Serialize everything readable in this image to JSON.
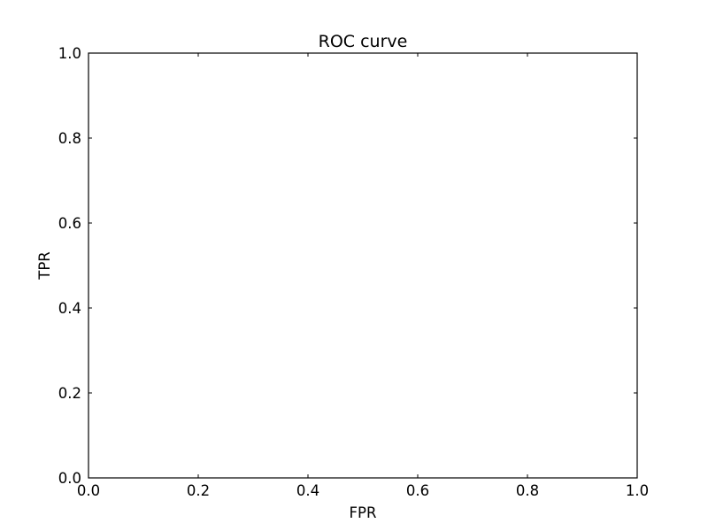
{
  "chart_data": {
    "type": "line",
    "title": "ROC curve",
    "xlabel": "FPR",
    "ylabel": "TPR",
    "xlim": [
      0.0,
      1.0
    ],
    "ylim": [
      0.0,
      1.0
    ],
    "x_ticks": [
      0.0,
      0.2,
      0.4,
      0.6,
      0.8,
      1.0
    ],
    "y_ticks": [
      0.0,
      0.2,
      0.4,
      0.6,
      0.8,
      1.0
    ],
    "x_tick_labels": [
      "0.0",
      "0.2",
      "0.4",
      "0.6",
      "0.8",
      "1.0"
    ],
    "y_tick_labels": [
      "0.0",
      "0.2",
      "0.4",
      "0.6",
      "0.8",
      "1.0"
    ],
    "grid": false,
    "series": []
  }
}
